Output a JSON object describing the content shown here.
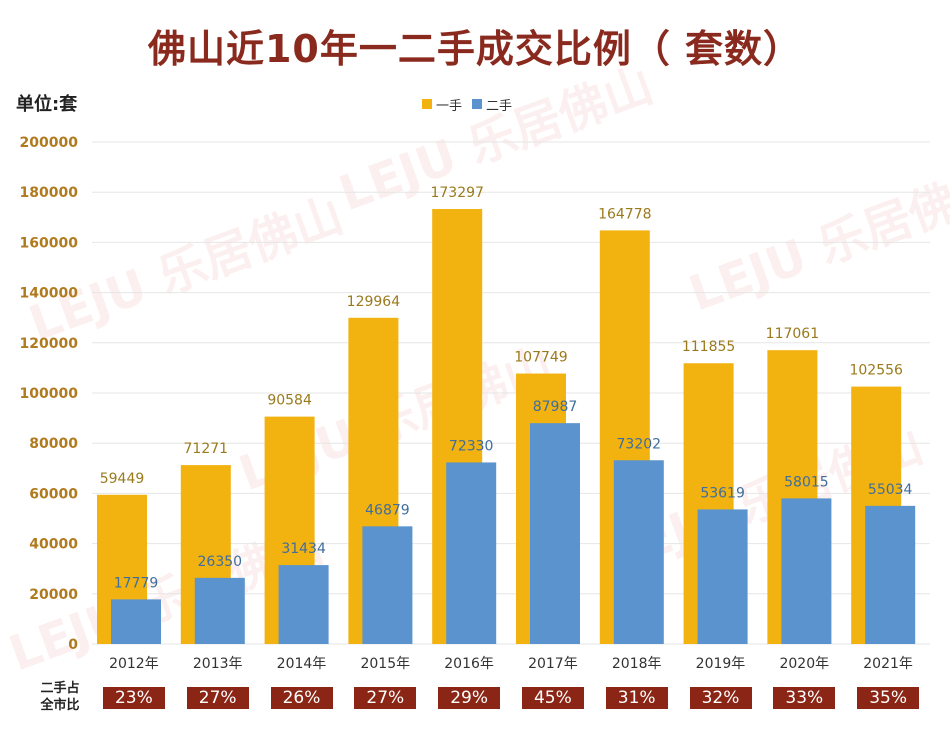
{
  "title": "佛山近10年一二手成交比例（ 套数）",
  "unit_label": "单位:套",
  "ratio_label_line1": "二手占",
  "ratio_label_line2": "全市比",
  "watermark_text": "LEJU 乐居佛山",
  "colors": {
    "first_hand": "#f2b20f",
    "second_hand": "#5a93ce",
    "title": "#8a2a1e",
    "axis_text": "#b07a1e",
    "first_label": "#9a7a1c",
    "second_label": "#3f6e9e",
    "ratio_box": "#8b2616",
    "grid": "#e6e6e6"
  },
  "chart_data": {
    "type": "bar",
    "title": "佛山近10年一二手成交比例（ 套数）",
    "ylabel": "单位:套",
    "ylim": [
      0,
      200000
    ],
    "yticks": [
      0,
      20000,
      40000,
      60000,
      80000,
      100000,
      120000,
      140000,
      160000,
      180000,
      200000
    ],
    "grid": true,
    "legend_position": "top-center",
    "categories": [
      "2012年",
      "2013年",
      "2014年",
      "2015年",
      "2016年",
      "2017年",
      "2018年",
      "2019年",
      "2020年",
      "2021年"
    ],
    "series": [
      {
        "name": "一手",
        "values": [
          59449,
          71271,
          90584,
          129964,
          173297,
          107749,
          164778,
          111855,
          117061,
          102556
        ]
      },
      {
        "name": "二手",
        "values": [
          17779,
          26350,
          31434,
          46879,
          72330,
          87987,
          73202,
          53619,
          58015,
          55034
        ]
      }
    ],
    "second_hand_share": [
      "23%",
      "27%",
      "26%",
      "27%",
      "29%",
      "45%",
      "31%",
      "32%",
      "33%",
      "35%"
    ]
  }
}
